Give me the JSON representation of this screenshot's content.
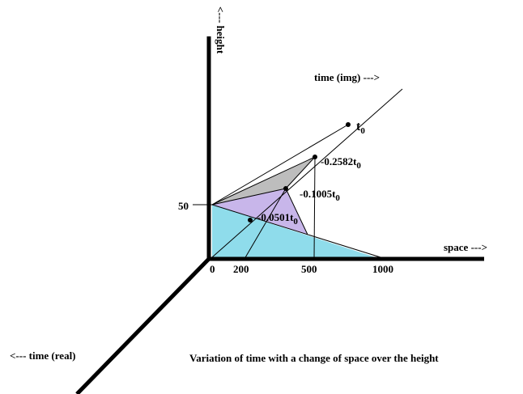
{
  "axes": {
    "height": "<--- height",
    "time_img": "time (img) --->",
    "space": "space --->",
    "time_real": "<--- time (real)"
  },
  "height_tick": "50",
  "space_ticks": [
    "0",
    "200",
    "500",
    "1000"
  ],
  "points": [
    {
      "text": "t",
      "sub": "0"
    },
    {
      "text": "-0.2582t",
      "sub": "0"
    },
    {
      "text": "-0.1005t",
      "sub": "0"
    },
    {
      "text": "-0.0501t",
      "sub": "0"
    }
  ],
  "caption": "Variation of time with a change of space over the height"
}
